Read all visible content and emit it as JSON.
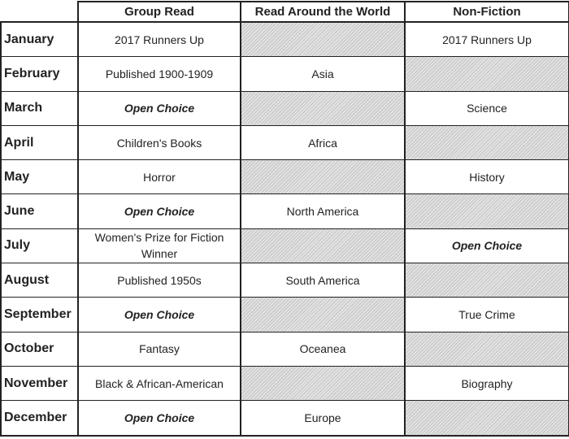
{
  "headers": [
    "Group Read",
    "Read Around the World",
    "Non-Fiction"
  ],
  "colors": {
    "hatch_fill": "#e2e2e2",
    "hatch_lines": "#c4c4c4",
    "border": "#222222"
  },
  "rows": [
    {
      "month": "January",
      "cells": [
        {
          "text": "2017 Runners Up"
        },
        {
          "hatched": true
        },
        {
          "text": "2017 Runners Up"
        }
      ]
    },
    {
      "month": "February",
      "cells": [
        {
          "text": "Published 1900-1909"
        },
        {
          "text": "Asia"
        },
        {
          "hatched": true
        }
      ]
    },
    {
      "month": "March",
      "cells": [
        {
          "text": "Open Choice",
          "italic": true
        },
        {
          "hatched": true
        },
        {
          "text": "Science"
        }
      ]
    },
    {
      "month": "April",
      "cells": [
        {
          "text": "Children's Books"
        },
        {
          "text": "Africa"
        },
        {
          "hatched": true
        }
      ]
    },
    {
      "month": "May",
      "cells": [
        {
          "text": "Horror"
        },
        {
          "hatched": true
        },
        {
          "text": "History"
        }
      ]
    },
    {
      "month": "June",
      "cells": [
        {
          "text": "Open Choice",
          "italic": true
        },
        {
          "text": "North America"
        },
        {
          "hatched": true
        }
      ]
    },
    {
      "month": "July",
      "cells": [
        {
          "text": "Women's Prize for Fiction Winner"
        },
        {
          "hatched": true
        },
        {
          "text": "Open Choice",
          "italic": true
        }
      ]
    },
    {
      "month": "August",
      "cells": [
        {
          "text": "Published 1950s"
        },
        {
          "text": "South America"
        },
        {
          "hatched": true
        }
      ]
    },
    {
      "month": "September",
      "cells": [
        {
          "text": "Open Choice",
          "italic": true
        },
        {
          "hatched": true
        },
        {
          "text": "True Crime"
        }
      ]
    },
    {
      "month": "October",
      "cells": [
        {
          "text": "Fantasy"
        },
        {
          "text": "Oceanea"
        },
        {
          "hatched": true
        }
      ]
    },
    {
      "month": "November",
      "cells": [
        {
          "text": "Black & African-American"
        },
        {
          "hatched": true
        },
        {
          "text": "Biography"
        }
      ]
    },
    {
      "month": "December",
      "cells": [
        {
          "text": "Open Choice",
          "italic": true
        },
        {
          "text": "Europe"
        },
        {
          "hatched": true
        }
      ]
    }
  ]
}
